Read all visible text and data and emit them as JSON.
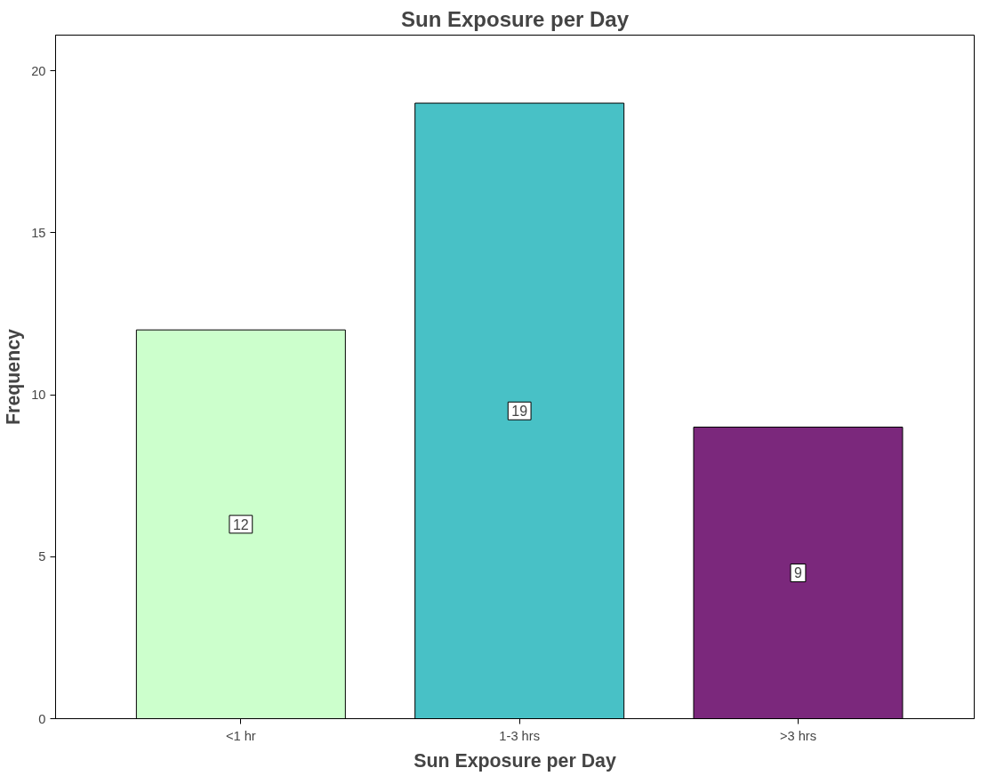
{
  "chart_data": {
    "type": "bar",
    "title": "Sun Exposure per Day",
    "xlabel": "Sun Exposure per Day",
    "ylabel": "Frequency",
    "categories": [
      "<1 hr",
      "1-3 hrs",
      ">3 hrs"
    ],
    "values": [
      12,
      19,
      9
    ],
    "colors": [
      "#ccffcc",
      "#48c1c6",
      "#7b287c"
    ],
    "ylim": [
      0,
      21.1
    ],
    "yticks": [
      0,
      5,
      10,
      15,
      20
    ],
    "grid": false,
    "data_labels": true
  }
}
